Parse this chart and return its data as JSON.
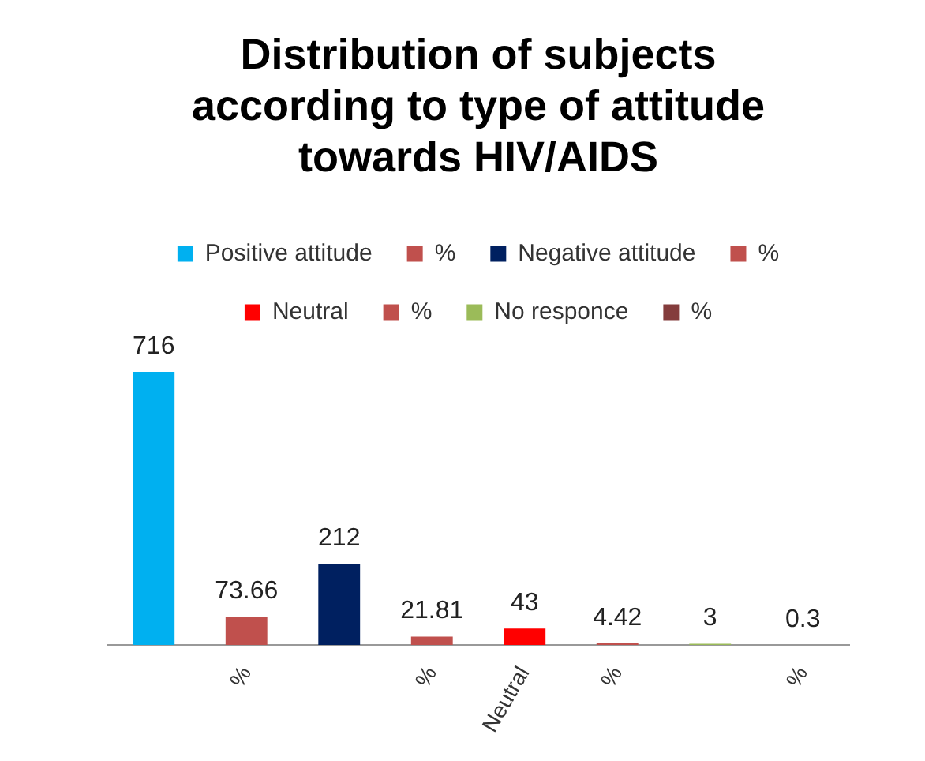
{
  "chart_data": {
    "type": "bar",
    "title": "Distribution of subjects according to type of attitude towards HIV/AIDS",
    "categories": [
      null,
      "%",
      null,
      "%",
      "Neutral",
      "%",
      null,
      "%"
    ],
    "series": [
      {
        "name": "Positive attitude",
        "color": "#00b0f0",
        "values": [
          716,
          null,
          null,
          null,
          null,
          null,
          null,
          null
        ]
      },
      {
        "name": "%",
        "color": "#c0504d",
        "values": [
          null,
          73.66,
          null,
          null,
          null,
          null,
          null,
          null
        ]
      },
      {
        "name": "Negative attitude",
        "color": "#002060",
        "values": [
          null,
          null,
          212,
          null,
          null,
          null,
          null,
          null
        ]
      },
      {
        "name": "%",
        "color": "#c0504d",
        "values": [
          null,
          null,
          null,
          21.81,
          null,
          null,
          null,
          null
        ]
      },
      {
        "name": "Neutral",
        "color": "#ff0000",
        "values": [
          null,
          null,
          null,
          null,
          43,
          null,
          null,
          null
        ]
      },
      {
        "name": "%",
        "color": "#c0504d",
        "values": [
          null,
          null,
          null,
          null,
          null,
          4.42,
          null,
          null
        ]
      },
      {
        "name": "No responce",
        "color": "#9bbb59",
        "values": [
          null,
          null,
          null,
          null,
          null,
          null,
          3,
          null
        ]
      },
      {
        "name": "%",
        "color": "#843c3c",
        "values": [
          null,
          null,
          null,
          null,
          null,
          null,
          null,
          0.3
        ]
      }
    ],
    "data_labels": true,
    "legend": "top",
    "grid": false
  }
}
